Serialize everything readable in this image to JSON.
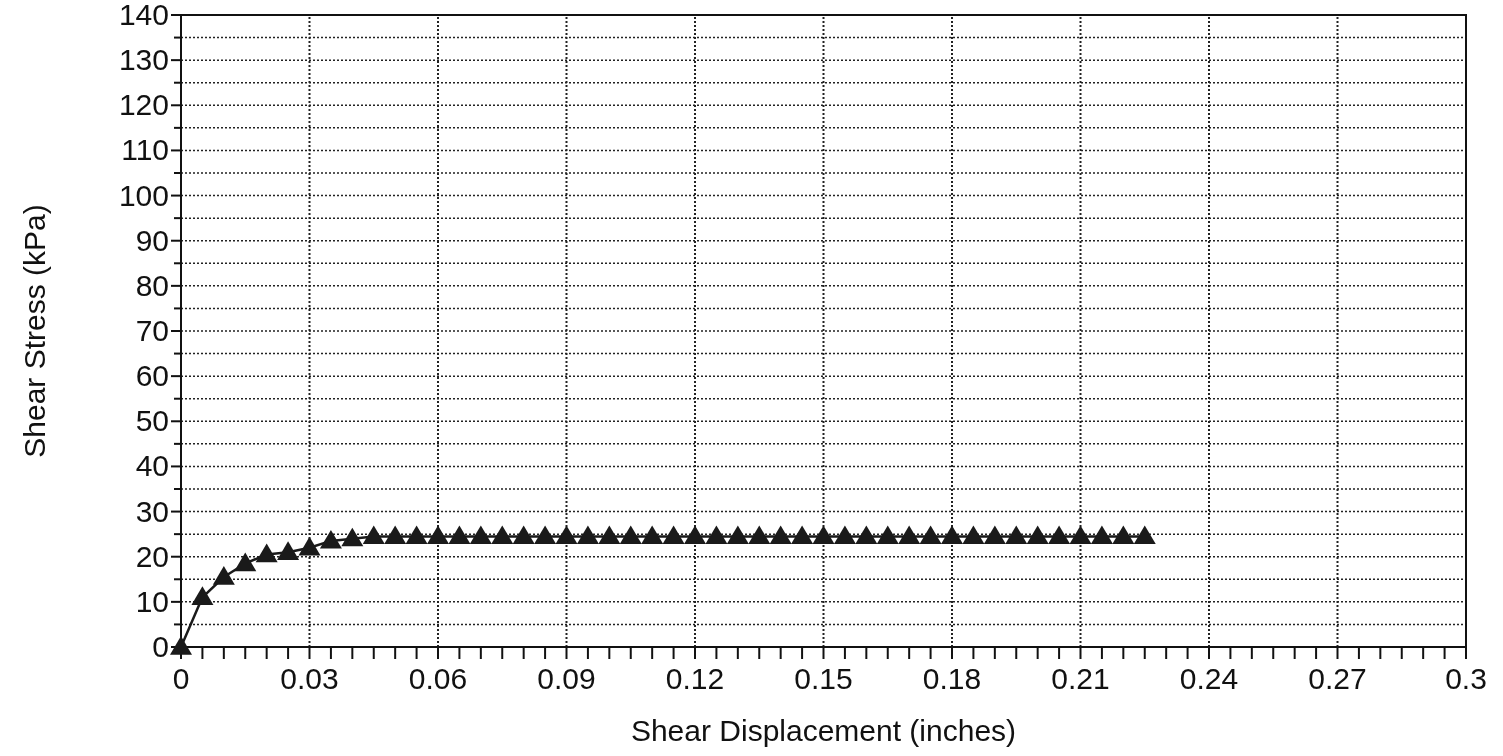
{
  "chart_data": {
    "type": "line",
    "xlabel": "Shear Displacement (inches)",
    "ylabel": "Shear Stress (kPa)",
    "x": [
      0,
      0.005,
      0.01,
      0.015,
      0.02,
      0.025,
      0.03,
      0.035,
      0.04,
      0.045,
      0.05,
      0.055,
      0.06,
      0.065,
      0.07,
      0.075,
      0.08,
      0.085,
      0.09,
      0.095,
      0.1,
      0.105,
      0.11,
      0.115,
      0.12,
      0.125,
      0.13,
      0.135,
      0.14,
      0.145,
      0.15,
      0.155,
      0.16,
      0.165,
      0.17,
      0.175,
      0.18,
      0.185,
      0.19,
      0.195,
      0.2,
      0.205,
      0.21,
      0.215,
      0.22,
      0.225
    ],
    "series": [
      {
        "color": "#1a1a1a",
        "marker": "triangle",
        "line_style": "solid",
        "values": [
          0,
          11,
          15.5,
          18.5,
          20.5,
          21,
          22,
          23.5,
          24,
          24.5,
          24.5,
          24.5,
          24.5,
          24.5,
          24.5,
          24.5,
          24.5,
          24.5,
          24.5,
          24.5,
          24.5,
          24.5,
          24.5,
          24.5,
          24.5,
          24.5,
          24.5,
          24.5,
          24.5,
          24.5,
          24.5,
          24.5,
          24.5,
          24.5,
          24.5,
          24.5,
          24.5,
          24.5,
          24.5,
          24.5,
          24.5,
          24.5,
          24.5,
          24.5,
          24.5,
          24.5
        ]
      }
    ],
    "xlim": [
      0,
      0.3
    ],
    "ylim": [
      0,
      140
    ],
    "xticks": [
      0,
      {
        "value": 0.005,
        "label": null
      },
      {
        "value": 0.01,
        "label": null
      },
      {
        "value": 0.015,
        "label": null
      },
      {
        "value": 0.02,
        "label": null
      },
      {
        "value": 0.025,
        "label": null
      },
      0.03,
      {
        "value": 0.035,
        "label": null
      },
      {
        "value": 0.04,
        "label": null
      },
      {
        "value": 0.045,
        "label": null
      },
      {
        "value": 0.05,
        "label": null
      },
      {
        "value": 0.055,
        "label": null
      },
      0.06,
      {
        "value": 0.065,
        "label": null
      },
      {
        "value": 0.07,
        "label": null
      },
      {
        "value": 0.075,
        "label": null
      },
      {
        "value": 0.08,
        "label": null
      },
      {
        "value": 0.085,
        "label": null
      },
      0.09,
      {
        "value": 0.095,
        "label": null
      },
      {
        "value": 0.1,
        "label": null
      },
      {
        "value": 0.105,
        "label": null
      },
      {
        "value": 0.11,
        "label": null
      },
      {
        "value": 0.115,
        "label": null
      },
      0.12,
      {
        "value": 0.125,
        "label": null
      },
      {
        "value": 0.13,
        "label": null
      },
      {
        "value": 0.135,
        "label": null
      },
      {
        "value": 0.14,
        "label": null
      },
      {
        "value": 0.145,
        "label": null
      },
      0.15,
      {
        "value": 0.155,
        "label": null
      },
      {
        "value": 0.16,
        "label": null
      },
      {
        "value": 0.165,
        "label": null
      },
      {
        "value": 0.17,
        "label": null
      },
      {
        "value": 0.175,
        "label": null
      },
      0.18,
      {
        "value": 0.185,
        "label": null
      },
      {
        "value": 0.19,
        "label": null
      },
      {
        "value": 0.195,
        "label": null
      },
      {
        "value": 0.2,
        "label": null
      },
      {
        "value": 0.205,
        "label": null
      },
      0.21,
      {
        "value": 0.215,
        "label": null
      },
      {
        "value": 0.22,
        "label": null
      },
      {
        "value": 0.225,
        "label": null
      },
      {
        "value": 0.23,
        "label": null
      },
      {
        "value": 0.235,
        "label": null
      },
      0.24,
      {
        "value": 0.245,
        "label": null
      },
      {
        "value": 0.25,
        "label": null
      },
      {
        "value": 0.255,
        "label": null
      },
      {
        "value": 0.26,
        "label": null
      },
      {
        "value": 0.265,
        "label": null
      },
      0.27,
      {
        "value": 0.275,
        "label": null
      },
      {
        "value": 0.28,
        "label": null
      },
      {
        "value": 0.285,
        "label": null
      },
      {
        "value": 0.29,
        "label": null
      },
      {
        "value": 0.295,
        "label": null
      },
      0.3
    ],
    "yticks": [
      0,
      {
        "value": 5,
        "label": null
      },
      10,
      {
        "value": 15,
        "label": null
      },
      20,
      {
        "value": 25,
        "label": null
      },
      30,
      {
        "value": 35,
        "label": null
      },
      40,
      {
        "value": 45,
        "label": null
      },
      50,
      {
        "value": 55,
        "label": null
      },
      60,
      {
        "value": 65,
        "label": null
      },
      70,
      {
        "value": 75,
        "label": null
      },
      80,
      {
        "value": 85,
        "label": null
      },
      90,
      {
        "value": 95,
        "label": null
      },
      100,
      {
        "value": 105,
        "label": null
      },
      110,
      {
        "value": 115,
        "label": null
      },
      120,
      {
        "value": 125,
        "label": null
      },
      130,
      {
        "value": 135,
        "label": null
      },
      140
    ],
    "grid": true
  }
}
